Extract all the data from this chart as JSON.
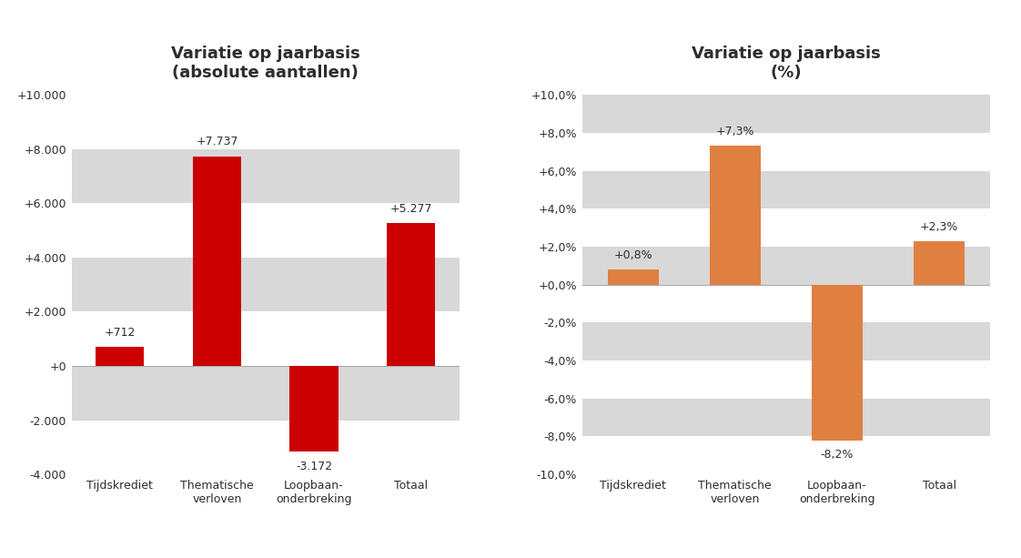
{
  "chart1": {
    "title": "Variatie op jaarbasis\n(absolute aantallen)",
    "categories": [
      "Tijdskrediet",
      "Thematische\nverloven",
      "Loopbaan-\nonderbreking",
      "Totaal"
    ],
    "values": [
      712,
      7737,
      -3172,
      5277
    ],
    "bar_color": "#cc0000",
    "ylim": [
      -4000,
      10000
    ],
    "yticks": [
      -4000,
      -2000,
      0,
      2000,
      4000,
      6000,
      8000,
      10000
    ],
    "ytick_labels": [
      "-4.000",
      "-2.000",
      "+0",
      "+2.000",
      "+4.000",
      "+6.000",
      "+8.000",
      "+10.000"
    ],
    "annotations": [
      "+712",
      "+7.737",
      "-3.172",
      "+5.277"
    ]
  },
  "chart2": {
    "title": "Variatie op jaarbasis\n(%)",
    "categories": [
      "Tijdskrediet",
      "Thematische\nverloven",
      "Loopbaan-\nonderbreking",
      "Totaal"
    ],
    "values": [
      0.8,
      7.3,
      -8.2,
      2.3
    ],
    "bar_color": "#e08040",
    "ylim": [
      -10.0,
      10.0
    ],
    "yticks": [
      -10,
      -8,
      -6,
      -4,
      -2,
      0,
      2,
      4,
      6,
      8,
      10
    ],
    "ytick_labels": [
      "-10,0%",
      "-8,0%",
      "-6,0%",
      "-4,0%",
      "-2,0%",
      "+0,0%",
      "+2,0%",
      "+4,0%",
      "+6,0%",
      "+8,0%",
      "+10,0%"
    ],
    "annotations": [
      "+0,8%",
      "+7,3%",
      "-8,2%",
      "+2,3%"
    ]
  },
  "background_color": "#ffffff",
  "stripe_color": "#d8d8d8",
  "title_color": "#2d2d2d",
  "title_fontsize": 13,
  "label_fontsize": 9,
  "annotation_fontsize": 9,
  "tick_fontsize": 9
}
